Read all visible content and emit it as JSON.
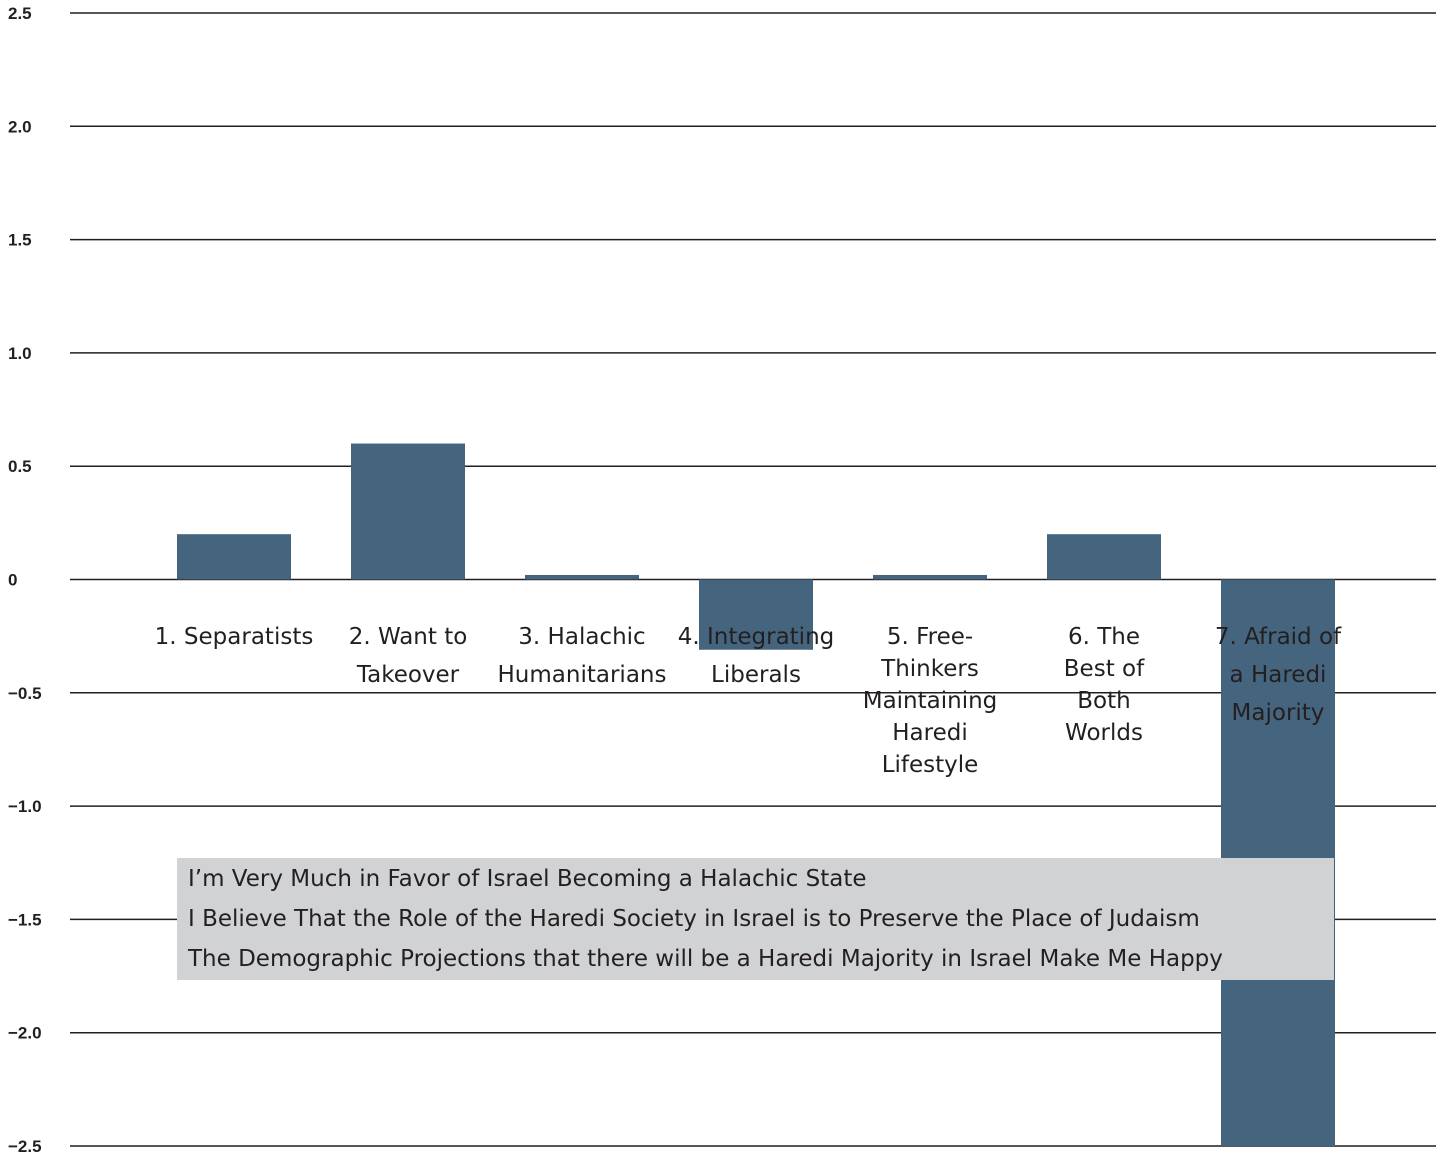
{
  "chart_data": {
    "type": "bar",
    "categories": [
      "1. Separatists",
      "2. Want to Takeover",
      "3. Halachic Humanitarians",
      "4. Integrating Liberals",
      "5. Free-Thinkers Maintaining Haredi Lifestyle",
      "6. The Best of Both Worlds",
      "7. Afraid of a Haredi Majority"
    ],
    "category_lines": [
      [
        "1. Separatists"
      ],
      [
        "2. Want to",
        "Takeover"
      ],
      [
        "3. Halachic",
        "Humanitarians"
      ],
      [
        "4. Integrating",
        "Liberals"
      ],
      [
        "5. Free-",
        "Thinkers",
        "Maintaining",
        "Haredi",
        "Lifestyle"
      ],
      [
        "6. The",
        "Best of",
        "Both",
        "Worlds"
      ],
      [
        "7. Afraid of",
        "a Haredi",
        "Majority"
      ]
    ],
    "values": [
      0.2,
      0.6,
      0.02,
      -0.31,
      0.02,
      0.2,
      -2.5
    ],
    "ylim": [
      -2.5,
      2.5
    ],
    "yticks": [
      2.5,
      2.0,
      1.5,
      1.0,
      0.5,
      0,
      -0.5,
      -1.0,
      -1.5,
      -2.0,
      -2.5
    ],
    "ytick_labels": [
      "2.5",
      "2.0",
      "1.5",
      "1.0",
      "0.5",
      "0",
      "−0.5",
      "−1.0",
      "−1.5",
      "−2.0",
      "−2.5"
    ],
    "bar_color": "#45657f",
    "grid": true,
    "legend": {
      "entries": [
        "I’m Very Much in Favor of Israel Becoming a Halachic State",
        "I Believe That the Role of the Haredi Society in Israel is to Preserve the Place of Judaism",
        "The Demographic Projections that there will be a Haredi Majority in Israel Make Me Happy"
      ],
      "background": "#d1d2d4",
      "position": "bottom-left"
    },
    "title": "",
    "xlabel": "",
    "ylabel": ""
  }
}
